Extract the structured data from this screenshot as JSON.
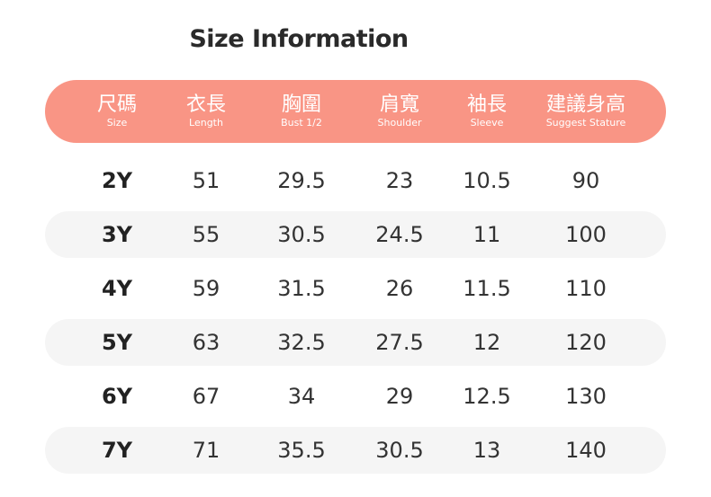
{
  "title": "Size Information",
  "header_color": "#F99585",
  "columns": [
    {
      "zh": "尺碼",
      "en": "Size"
    },
    {
      "zh": "衣長",
      "en": "Length"
    },
    {
      "zh": "胸圍",
      "en": "Bust 1/2"
    },
    {
      "zh": "肩寬",
      "en": "Shoulder"
    },
    {
      "zh": "袖長",
      "en": "Sleeve"
    },
    {
      "zh": "建議身高",
      "en": "Suggest Stature"
    }
  ],
  "rows": [
    [
      "2Y",
      "51",
      "29.5",
      "23",
      "10.5",
      "90"
    ],
    [
      "3Y",
      "55",
      "30.5",
      "24.5",
      "11",
      "100"
    ],
    [
      "4Y",
      "59",
      "31.5",
      "26",
      "11.5",
      "110"
    ],
    [
      "5Y",
      "63",
      "32.5",
      "27.5",
      "12",
      "120"
    ],
    [
      "6Y",
      "67",
      "34",
      "29",
      "12.5",
      "130"
    ],
    [
      "7Y",
      "71",
      "35.5",
      "30.5",
      "13",
      "140"
    ]
  ]
}
